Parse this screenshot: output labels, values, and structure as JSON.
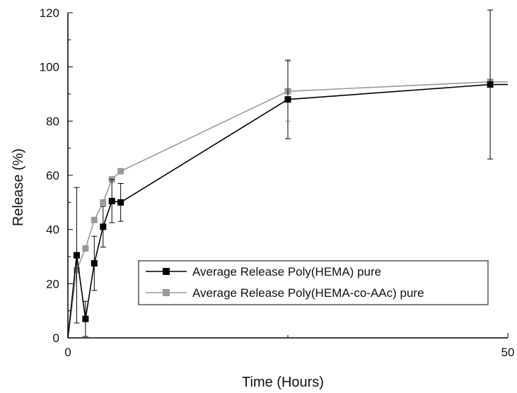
{
  "chart_data": {
    "type": "line",
    "title": "",
    "xlabel": "Time (Hours)",
    "ylabel": "Release (%)",
    "xlim": [
      0,
      50
    ],
    "ylim": [
      0,
      120
    ],
    "x_tick_labels": [
      "0",
      "50"
    ],
    "x_minor_ticks": [
      25
    ],
    "y_tick_labels": [
      "0",
      "20",
      "40",
      "60",
      "80",
      "100",
      "120"
    ],
    "grid": false,
    "legend_position": "lower-center",
    "series": [
      {
        "name": "Average Release Poly(HEMA) pure",
        "color": "#000000",
        "marker": "square",
        "x": [
          0,
          1,
          2,
          3,
          4,
          5,
          6,
          25,
          48,
          50
        ],
        "y": [
          0,
          30.5,
          7,
          27.5,
          41,
          50.5,
          50,
          88,
          93.5,
          93.5
        ],
        "errors": [
          null,
          25,
          6.5,
          10,
          7.5,
          8,
          7,
          14.5,
          27.5,
          null
        ]
      },
      {
        "name": "Average Release Poly(HEMA-co-AAc) pure",
        "color": "#999999",
        "marker": "square",
        "x": [
          0,
          1,
          2,
          3,
          4,
          5,
          6,
          25,
          48,
          50
        ],
        "y": [
          0,
          25,
          33,
          43.5,
          50,
          58.5,
          61.5,
          91,
          94.5,
          94.5
        ],
        "errors": [
          null,
          null,
          null,
          null,
          null,
          null,
          null,
          11,
          null,
          null
        ]
      }
    ]
  }
}
